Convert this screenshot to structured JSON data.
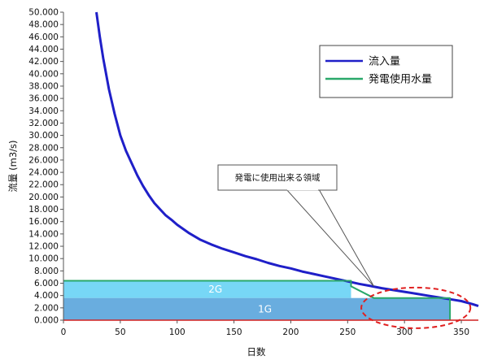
{
  "chart_data": {
    "type": "line",
    "title": "",
    "xlabel": "日数",
    "ylabel": "流量 (m3/s)",
    "xlim": [
      0,
      365
    ],
    "ylim": [
      0,
      50
    ],
    "x_ticks": [
      0,
      50,
      100,
      150,
      200,
      250,
      300,
      350
    ],
    "y_ticks": [
      "0.000",
      "2.000",
      "4.000",
      "6.000",
      "8.000",
      "10.000",
      "12.000",
      "14.000",
      "16.000",
      "18.000",
      "20.000",
      "22.000",
      "24.000",
      "26.000",
      "28.000",
      "30.000",
      "32.000",
      "34.000",
      "36.000",
      "38.000",
      "40.000",
      "42.000",
      "44.000",
      "46.000",
      "48.000",
      "50.000"
    ],
    "y_tick_values": [
      0,
      2,
      4,
      6,
      8,
      10,
      12,
      14,
      16,
      18,
      20,
      22,
      24,
      26,
      28,
      30,
      32,
      34,
      36,
      38,
      40,
      42,
      44,
      46,
      48,
      50
    ],
    "grid": false,
    "legend_position": "top-right",
    "series": [
      {
        "name": "流入量",
        "color": "#1f1fc8",
        "x": [
          29,
          32,
          35,
          40,
          45,
          50,
          55,
          60,
          65,
          70,
          75,
          80,
          85,
          90,
          95,
          100,
          110,
          120,
          130,
          140,
          150,
          160,
          170,
          180,
          190,
          200,
          210,
          220,
          230,
          240,
          250,
          260,
          270,
          280,
          290,
          300,
          310,
          320,
          330,
          340,
          350,
          360,
          365
        ],
        "values": [
          50,
          46,
          42.5,
          37.5,
          33.5,
          30,
          27.5,
          25.5,
          23.5,
          21.8,
          20.3,
          19,
          18,
          17,
          16.3,
          15.5,
          14.2,
          13.1,
          12.3,
          11.6,
          11,
          10.4,
          9.9,
          9.3,
          8.8,
          8.4,
          7.9,
          7.5,
          7.1,
          6.7,
          6.3,
          5.9,
          5.55,
          5.2,
          4.9,
          4.6,
          4.3,
          4.0,
          3.7,
          3.4,
          3.1,
          2.6,
          2.3
        ]
      },
      {
        "name": "発電使用水量",
        "color": "#2aa86a",
        "x": [
          0,
          253,
          253,
          273,
          340,
          340
        ],
        "values": [
          6.4,
          6.4,
          5.5,
          3.6,
          3.6,
          0
        ]
      }
    ],
    "bands": [
      {
        "label": "2G",
        "x_start": 0,
        "x_end": 253,
        "y_bottom": 3.6,
        "y_top": 6.4,
        "color": "#5fd0f5"
      },
      {
        "label": "1G",
        "x_start": 0,
        "x_end": 340,
        "y_bottom": 0,
        "y_top": 3.6,
        "color": "#4f9fd9"
      }
    ],
    "annotations": [
      {
        "text": "発電に使用出来る領域",
        "point_x": 273,
        "point_y": 5.5
      }
    ],
    "highlight_ellipse": {
      "cx": 310,
      "cy": 2.0,
      "rx": 48,
      "ry": 3.3,
      "color": "#e02020"
    }
  }
}
